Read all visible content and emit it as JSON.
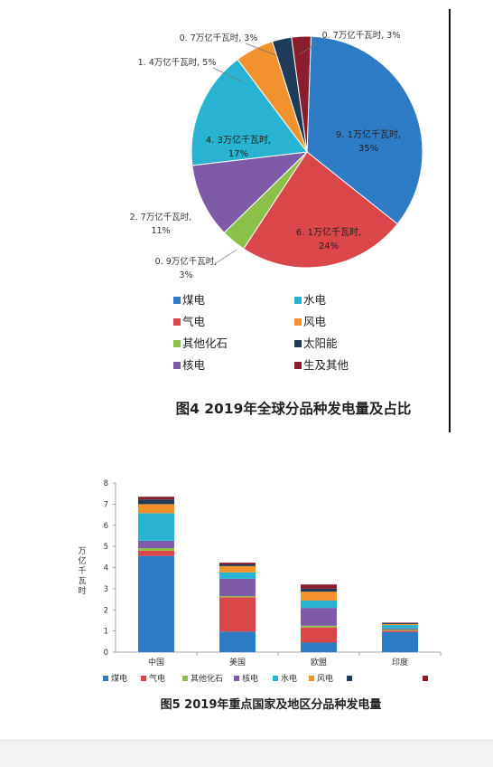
{
  "colors": {
    "coal": "#2E7BC6",
    "gas": "#D9474A",
    "other_fossil": "#8BC04B",
    "nuclear": "#7E5BA8",
    "hydro": "#29B3D3",
    "wind": "#F2922E",
    "solar": "#1F3B5A",
    "bio": "#8B1E2E"
  },
  "chart_data": [
    {
      "type": "pie",
      "title": "图4   2019年全球分品种发电量及占比",
      "slices": [
        {
          "key": "coal",
          "name": "煤电",
          "value": 9.1,
          "percent": 35,
          "label_value": "9. 1万亿千瓦时,",
          "label_pct": "35%"
        },
        {
          "key": "gas",
          "name": "气电",
          "value": 6.1,
          "percent": 24,
          "label_value": "6. 1万亿千瓦时,",
          "label_pct": "24%"
        },
        {
          "key": "other_fossil",
          "name": "其他化石",
          "value": 0.9,
          "percent": 3,
          "label_value": "0. 9万亿千瓦时,",
          "label_pct": "3%"
        },
        {
          "key": "nuclear",
          "name": "核电",
          "value": 2.7,
          "percent": 11,
          "label_value": "2. 7万亿千瓦时,",
          "label_pct": "11%"
        },
        {
          "key": "hydro",
          "name": "水电",
          "value": 4.3,
          "percent": 17,
          "label_value": "4. 3万亿千瓦时,",
          "label_pct": "17%"
        },
        {
          "key": "wind",
          "name": "风电",
          "value": 1.4,
          "percent": 5,
          "label_value": "1. 4万亿千瓦时, 5%",
          "label_pct": ""
        },
        {
          "key": "solar",
          "name": "太阳能",
          "value": 0.7,
          "percent": 3,
          "label_value": "0. 7万亿千瓦时, 3%",
          "label_pct": ""
        },
        {
          "key": "bio",
          "name": "生及其他",
          "value": 0.7,
          "percent": 3,
          "label_value": "0. 7万亿千瓦时, 3%",
          "label_pct": ""
        }
      ],
      "legend": [
        {
          "key": "coal",
          "name": "煤电"
        },
        {
          "key": "hydro",
          "name": "水电"
        },
        {
          "key": "gas",
          "name": "气电"
        },
        {
          "key": "wind",
          "name": "风电"
        },
        {
          "key": "other_fossil",
          "name": "其他化石"
        },
        {
          "key": "solar",
          "name": "太阳能"
        },
        {
          "key": "nuclear",
          "name": "核电"
        },
        {
          "key": "bio",
          "name": "生及其他"
        }
      ]
    },
    {
      "type": "bar",
      "stacked": true,
      "title": "图5   2019年重点国家及地区分品种发电量",
      "ylabel": "万亿千瓦时",
      "ylim": [
        0,
        8
      ],
      "yticks": [
        "0",
        "1",
        "2",
        "3",
        "4",
        "5",
        "6",
        "7",
        "8"
      ],
      "categories": [
        "中国",
        "美国",
        "欧盟",
        "印度"
      ],
      "series": [
        {
          "key": "coal",
          "name": "煤电",
          "values": [
            4.55,
            0.97,
            0.45,
            0.95
          ]
        },
        {
          "key": "gas",
          "name": "气电",
          "values": [
            0.25,
            1.63,
            0.72,
            0.07
          ]
        },
        {
          "key": "other_fossil",
          "name": "其他化石",
          "values": [
            0.12,
            0.05,
            0.08,
            0.05
          ]
        },
        {
          "key": "nuclear",
          "name": "核电",
          "values": [
            0.35,
            0.82,
            0.84,
            0.05
          ]
        },
        {
          "key": "hydro",
          "name": "水电",
          "values": [
            1.3,
            0.3,
            0.35,
            0.16
          ]
        },
        {
          "key": "wind",
          "name": "风电",
          "values": [
            0.43,
            0.3,
            0.42,
            0.05
          ]
        },
        {
          "key": "solar",
          "name": "",
          "values": [
            0.22,
            0.08,
            0.14,
            0.05
          ]
        },
        {
          "key": "bio",
          "name": "",
          "values": [
            0.13,
            0.08,
            0.2,
            0.02
          ]
        }
      ]
    }
  ]
}
